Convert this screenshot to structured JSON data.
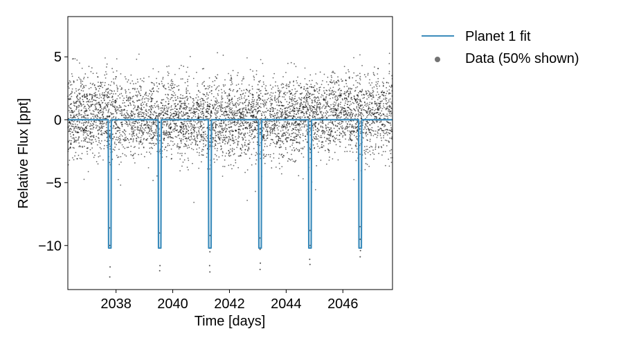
{
  "chart_data": {
    "type": "scatter",
    "xlabel": "Time [days]",
    "ylabel": "Relative Flux [ppt]",
    "xlim": [
      2036.3,
      2047.75
    ],
    "ylim": [
      -13.5,
      8.2
    ],
    "x_ticks": [
      2038,
      2040,
      2042,
      2044,
      2046
    ],
    "x_tick_labels": [
      "2038",
      "2040",
      "2042",
      "2044",
      "2046"
    ],
    "y_ticks": [
      -10,
      -5,
      0,
      5
    ],
    "y_tick_labels": [
      "−10",
      "−5",
      "0",
      "5"
    ],
    "grid": false,
    "legend_position": "outside-right-top",
    "series": [
      {
        "name": "Planet 1 fit",
        "kind": "line",
        "color": "#3a8bbb",
        "baseline": 0,
        "transit_times": [
          2037.78,
          2039.54,
          2041.31,
          2043.08,
          2044.84,
          2046.61
        ],
        "transit_depth": -10.2,
        "transit_duration_days": 0.11
      },
      {
        "name": "Data (50% shown)",
        "kind": "scatter",
        "color": "#000000",
        "trend": {
          "x": [
            2036.3,
            2042.0,
            2047.75
          ],
          "y": [
            0.3,
            -0.1,
            0.6
          ]
        },
        "noise_std_ppt": 1.6,
        "n_points_shown": 5400,
        "in_transit_points": [
          {
            "x": 2037.78,
            "y": -12.5
          },
          {
            "x": 2037.79,
            "y": -11.7
          },
          {
            "x": 2037.78,
            "y": -10.0
          },
          {
            "x": 2037.77,
            "y": -8.6
          },
          {
            "x": 2039.54,
            "y": -12.0
          },
          {
            "x": 2039.55,
            "y": -11.6
          },
          {
            "x": 2039.54,
            "y": -10.2
          },
          {
            "x": 2039.53,
            "y": -9.0
          },
          {
            "x": 2041.31,
            "y": -12.1
          },
          {
            "x": 2041.3,
            "y": -11.6
          },
          {
            "x": 2041.31,
            "y": -10.5
          },
          {
            "x": 2041.32,
            "y": -9.2
          },
          {
            "x": 2043.08,
            "y": -11.9
          },
          {
            "x": 2043.09,
            "y": -11.4
          },
          {
            "x": 2043.08,
            "y": -10.3
          },
          {
            "x": 2043.07,
            "y": -9.4
          },
          {
            "x": 2044.84,
            "y": -11.5
          },
          {
            "x": 2044.83,
            "y": -11.1
          },
          {
            "x": 2044.85,
            "y": -10.0
          },
          {
            "x": 2044.84,
            "y": -8.8
          },
          {
            "x": 2046.61,
            "y": -10.9
          },
          {
            "x": 2046.62,
            "y": -10.4
          },
          {
            "x": 2046.61,
            "y": -9.5
          },
          {
            "x": 2046.6,
            "y": -8.5
          }
        ]
      }
    ]
  }
}
